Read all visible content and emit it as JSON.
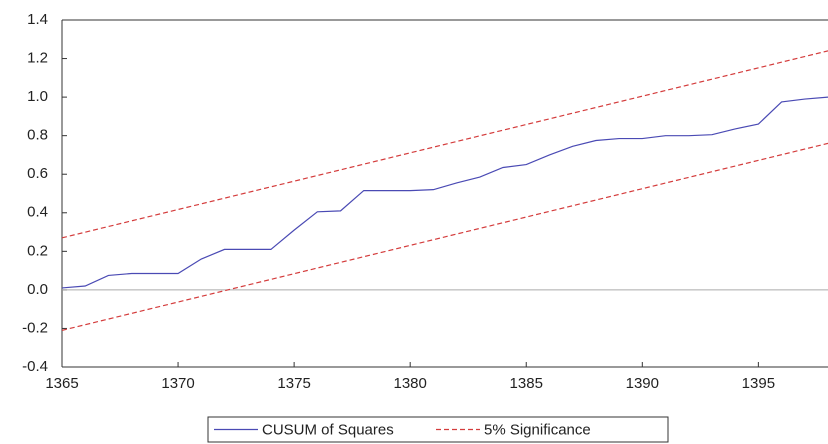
{
  "chart_data": {
    "type": "line",
    "x": [
      1365,
      1366,
      1367,
      1368,
      1369,
      1370,
      1371,
      1372,
      1373,
      1374,
      1375,
      1376,
      1377,
      1378,
      1379,
      1380,
      1381,
      1382,
      1383,
      1384,
      1385,
      1386,
      1387,
      1388,
      1389,
      1390,
      1391,
      1392,
      1393,
      1394,
      1395,
      1396,
      1397,
      1398
    ],
    "series": [
      {
        "name": "CUSUM of Squares",
        "color": "#4a4ab4",
        "values": [
          0.01,
          0.02,
          0.075,
          0.085,
          0.085,
          0.085,
          0.16,
          0.21,
          0.21,
          0.21,
          0.31,
          0.405,
          0.41,
          0.515,
          0.515,
          0.515,
          0.52,
          0.555,
          0.585,
          0.635,
          0.65,
          0.7,
          0.745,
          0.775,
          0.785,
          0.785,
          0.8,
          0.8,
          0.805,
          0.835,
          0.86,
          0.975,
          0.99,
          1.0
        ]
      },
      {
        "name": "5% Significance",
        "color": "#d43c3c",
        "dashed": true,
        "x": [
          1365,
          1398
        ],
        "upper": [
          0.27,
          1.24
        ],
        "lower": [
          -0.21,
          0.76
        ]
      }
    ],
    "xlim": [
      1365,
      1398
    ],
    "xticks": [
      1365,
      1370,
      1375,
      1380,
      1385,
      1390,
      1395
    ],
    "ylim": [
      -0.4,
      1.4
    ],
    "yticks": [
      {
        "value": -0.4,
        "label": "-0.4"
      },
      {
        "value": -0.2,
        "label": "-0.2"
      },
      {
        "value": 0,
        "label": "0.0"
      },
      {
        "value": 0.2,
        "label": "0.2"
      },
      {
        "value": 0.4,
        "label": "0.4"
      },
      {
        "value": 0.6,
        "label": "0.6"
      },
      {
        "value": 0.8,
        "label": "0.8"
      },
      {
        "value": 1.0,
        "label": "1.0"
      },
      {
        "value": 1.2,
        "label": "1.2"
      },
      {
        "value": 1.4,
        "label": "1.4"
      }
    ],
    "zero_line": true,
    "legend": "bottom"
  }
}
